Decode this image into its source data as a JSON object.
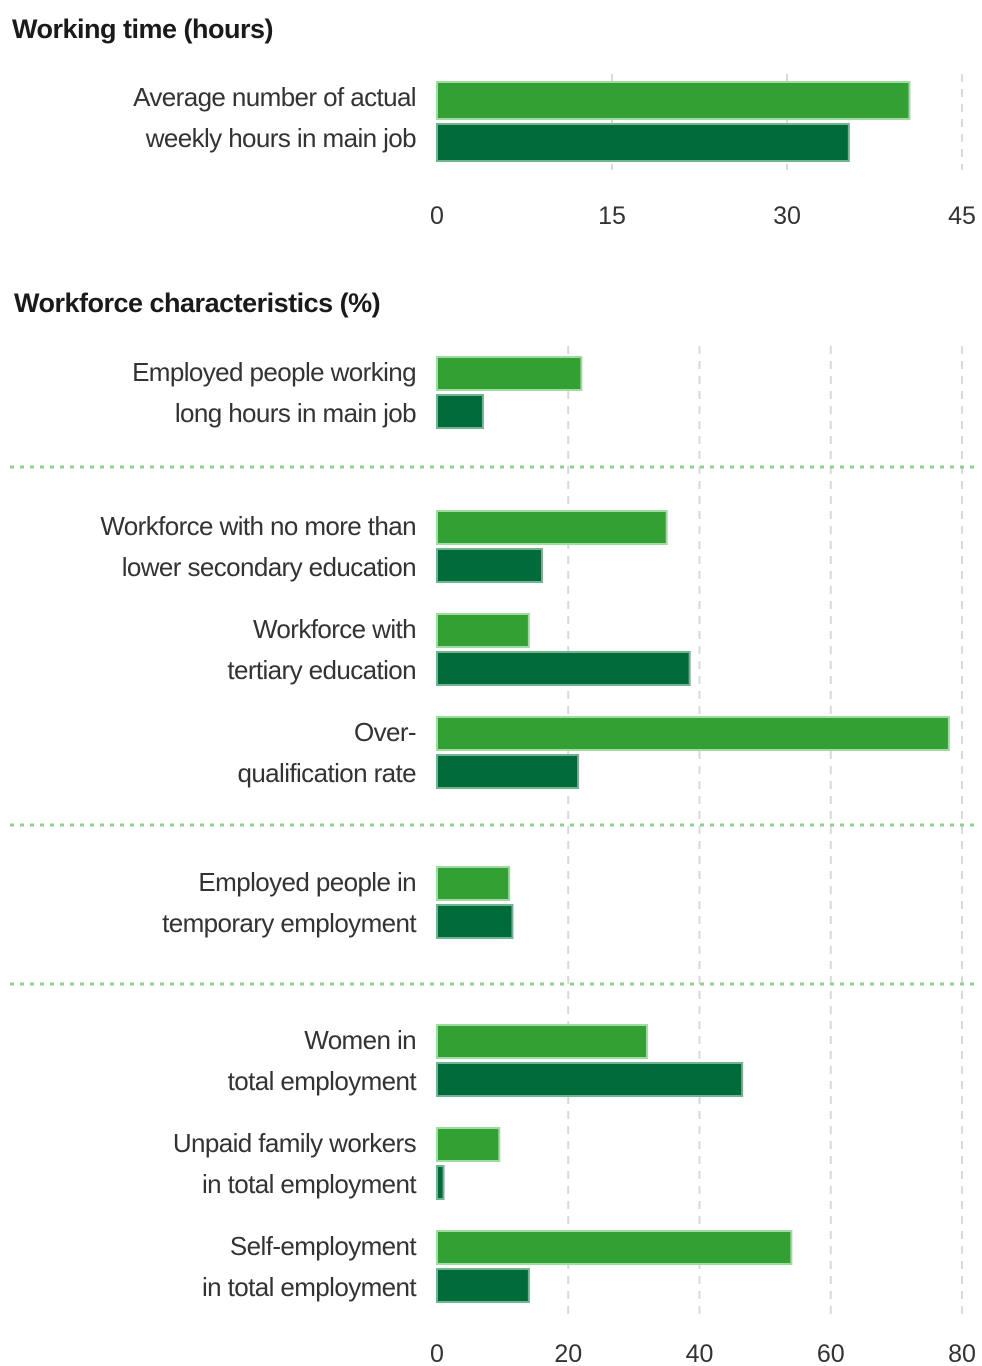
{
  "colors": {
    "series_a": "#33a033",
    "series_a_edge": "#9fdc9f",
    "series_b": "#006b3a",
    "series_b_edge": "#6fb58f"
  },
  "chart_data": [
    {
      "type": "bar",
      "orientation": "horizontal",
      "title": "Working time (hours)",
      "categories": [
        [
          "Average number of actual",
          "weekly hours in main job"
        ]
      ],
      "series": [
        {
          "values": [
            40.5
          ]
        },
        {
          "values": [
            35.3
          ]
        }
      ],
      "xlim": [
        0,
        45
      ],
      "xticks": [
        "0",
        "15",
        "30",
        "45"
      ],
      "grid": "vertical dashed"
    },
    {
      "type": "bar",
      "orientation": "horizontal",
      "title": "Workforce characteristics (%)",
      "categories": [
        [
          "Employed people working",
          "long hours in main job"
        ],
        [
          "Workforce with no more than",
          "lower secondary education"
        ],
        [
          "Workforce with",
          "tertiary education"
        ],
        [
          "Over-",
          "qualification rate"
        ],
        [
          "Employed people in",
          "temporary employment"
        ],
        [
          "Women in",
          "total employment"
        ],
        [
          "Unpaid family workers",
          "in total employment"
        ],
        [
          "Self-employment",
          "in total employment"
        ]
      ],
      "groups": [
        [
          0
        ],
        [
          1,
          2,
          3
        ],
        [
          4
        ],
        [
          5,
          6,
          7
        ]
      ],
      "series": [
        {
          "values": [
            22,
            35,
            14,
            78,
            11,
            32,
            9.5,
            54
          ]
        },
        {
          "values": [
            7,
            16,
            38.5,
            21.5,
            11.5,
            46.5,
            1,
            14
          ]
        }
      ],
      "xlim": [
        0,
        80
      ],
      "xticks": [
        "0",
        "20",
        "40",
        "60",
        "80"
      ],
      "grid": "vertical dashed"
    }
  ]
}
